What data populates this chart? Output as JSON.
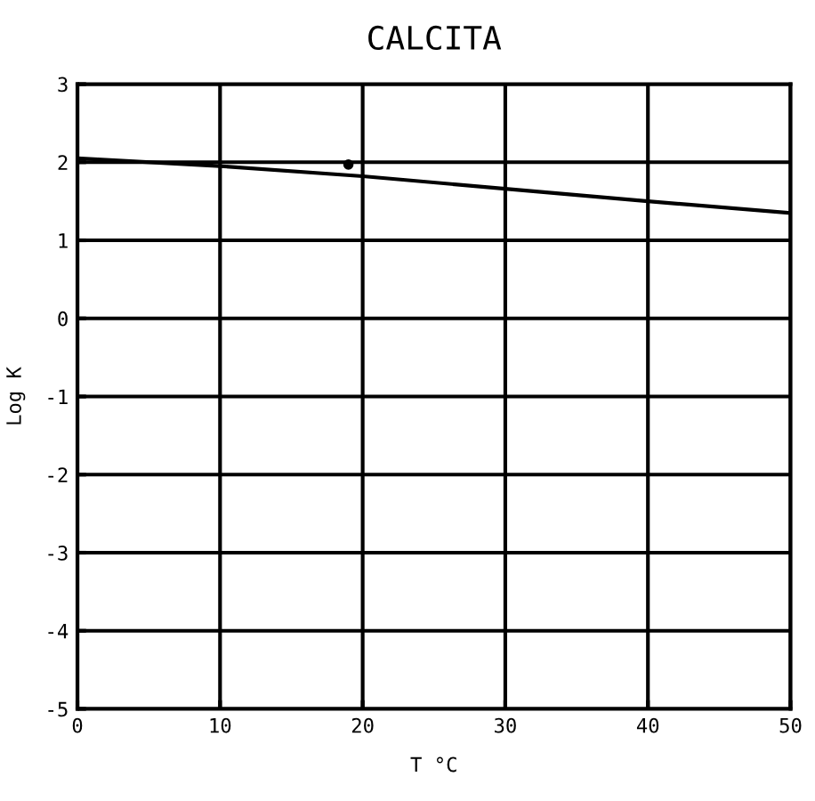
{
  "chart_data": {
    "type": "line",
    "title": "CALCITA",
    "xlabel": "T °C",
    "ylabel": "Log K",
    "series": [
      {
        "color": "#000000",
        "x": [
          0,
          10,
          20,
          30,
          40,
          50
        ],
        "values": [
          2.05,
          1.95,
          1.82,
          1.66,
          1.5,
          1.35
        ]
      },
      {
        "type": "scatter",
        "color": "#000000",
        "x": [
          19
        ],
        "values": [
          1.97
        ]
      }
    ],
    "xlim": [
      0,
      50
    ],
    "xticks": [
      0,
      10,
      20,
      30,
      40,
      50
    ],
    "ylim": [
      -5,
      3
    ],
    "yticks": [
      -5,
      -4,
      -3,
      -2,
      -1,
      0,
      1,
      2,
      3
    ],
    "grid": true
  }
}
